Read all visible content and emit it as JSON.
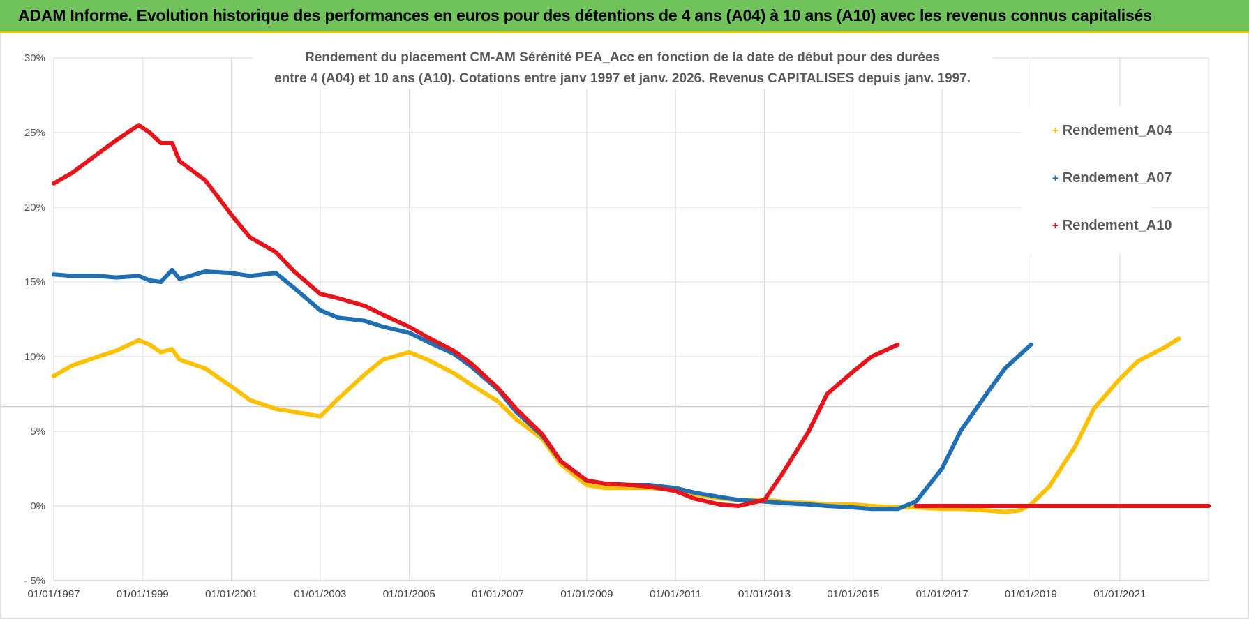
{
  "banner": {
    "title": "ADAM Informe. Evolution historique des performances en euros pour des détentions de 4 ans (A04) à 10 ans (A10) avec les revenus connus capitalisés"
  },
  "colors": {
    "banner_bg": "#70c25a",
    "banner_border": "#f2c200",
    "A04": "#ffc000",
    "A07": "#1f6fb4",
    "A10": "#e8141c",
    "grid": "#d9d9d9"
  },
  "chart_data": {
    "type": "scatter",
    "title_line1": "Rendement du placement CM-AM Sérénité PEA_Acc en fonction de la date de début pour des durées",
    "title_line2": "entre 4 (A04) et 10 ans (A10). Cotations entre janv 1997 et janv. 2026. Revenus CAPITALISES depuis janv. 1997.",
    "xlabel": "",
    "ylabel": "",
    "x_range": [
      "1997-01-01",
      "2023-01-01"
    ],
    "ylim": [
      -5,
      30
    ],
    "y_unit": "%",
    "y_ticks": [
      "30%",
      "25%",
      "20%",
      "15%",
      "10%",
      "5%",
      "0%",
      "- 5%"
    ],
    "x_ticks": [
      "01/01/1997",
      "01/01/1999",
      "01/01/2001",
      "01/01/2003",
      "01/01/2005",
      "01/01/2007",
      "01/01/2009",
      "01/01/2011",
      "01/01/2013",
      "01/01/2015",
      "01/01/2017",
      "01/01/2019",
      "01/01/2021"
    ],
    "grid": true,
    "legend_position": "right",
    "series": [
      {
        "name": "Rendement_A04",
        "color": "#ffc000",
        "points": [
          [
            "1997-01-01",
            8.7
          ],
          [
            "1997-06-01",
            9.4
          ],
          [
            "1998-01-01",
            10.0
          ],
          [
            "1998-06-01",
            10.4
          ],
          [
            "1998-12-01",
            11.1
          ],
          [
            "1999-03-01",
            10.8
          ],
          [
            "1999-06-01",
            10.3
          ],
          [
            "1999-09-01",
            10.5
          ],
          [
            "1999-11-01",
            9.8
          ],
          [
            "2000-06-01",
            9.2
          ],
          [
            "2001-01-01",
            8.0
          ],
          [
            "2001-06-01",
            7.1
          ],
          [
            "2002-01-01",
            6.5
          ],
          [
            "2002-06-01",
            6.3
          ],
          [
            "2003-01-01",
            6.0
          ],
          [
            "2003-06-01",
            7.2
          ],
          [
            "2004-01-01",
            8.8
          ],
          [
            "2004-06-01",
            9.8
          ],
          [
            "2005-01-01",
            10.3
          ],
          [
            "2005-06-01",
            9.8
          ],
          [
            "2006-01-01",
            8.9
          ],
          [
            "2006-06-01",
            8.1
          ],
          [
            "2007-01-01",
            7.0
          ],
          [
            "2007-06-01",
            5.8
          ],
          [
            "2008-01-01",
            4.5
          ],
          [
            "2008-06-01",
            2.8
          ],
          [
            "2009-01-01",
            1.4
          ],
          [
            "2009-06-01",
            1.2
          ],
          [
            "2010-01-01",
            1.2
          ],
          [
            "2010-06-01",
            1.2
          ],
          [
            "2011-01-01",
            1.1
          ],
          [
            "2011-06-01",
            0.8
          ],
          [
            "2012-01-01",
            0.5
          ],
          [
            "2012-06-01",
            0.4
          ],
          [
            "2013-01-01",
            0.4
          ],
          [
            "2013-06-01",
            0.3
          ],
          [
            "2014-01-01",
            0.2
          ],
          [
            "2014-06-01",
            0.1
          ],
          [
            "2015-01-01",
            0.1
          ],
          [
            "2015-06-01",
            0.0
          ],
          [
            "2016-01-01",
            -0.1
          ],
          [
            "2016-06-01",
            -0.1
          ],
          [
            "2017-01-01",
            -0.2
          ],
          [
            "2017-06-01",
            -0.2
          ],
          [
            "2018-01-01",
            -0.3
          ],
          [
            "2018-06-01",
            -0.4
          ],
          [
            "2018-10-01",
            -0.3
          ],
          [
            "2019-01-01",
            0.1
          ],
          [
            "2019-06-01",
            1.3
          ],
          [
            "2020-01-01",
            4.0
          ],
          [
            "2020-06-01",
            6.5
          ],
          [
            "2021-01-01",
            8.5
          ],
          [
            "2021-06-01",
            9.7
          ],
          [
            "2022-01-01",
            10.6
          ],
          [
            "2022-05-01",
            11.2
          ]
        ]
      },
      {
        "name": "Rendement_A07",
        "color": "#1f6fb4",
        "points": [
          [
            "1997-01-01",
            15.5
          ],
          [
            "1997-06-01",
            15.4
          ],
          [
            "1998-01-01",
            15.4
          ],
          [
            "1998-06-01",
            15.3
          ],
          [
            "1998-12-01",
            15.4
          ],
          [
            "1999-03-01",
            15.1
          ],
          [
            "1999-06-01",
            15.0
          ],
          [
            "1999-09-01",
            15.8
          ],
          [
            "1999-11-01",
            15.2
          ],
          [
            "2000-06-01",
            15.7
          ],
          [
            "2001-01-01",
            15.6
          ],
          [
            "2001-06-01",
            15.4
          ],
          [
            "2002-01-01",
            15.6
          ],
          [
            "2002-06-01",
            14.6
          ],
          [
            "2003-01-01",
            13.1
          ],
          [
            "2003-06-01",
            12.6
          ],
          [
            "2004-01-01",
            12.4
          ],
          [
            "2004-06-01",
            12.0
          ],
          [
            "2005-01-01",
            11.6
          ],
          [
            "2005-06-01",
            11.0
          ],
          [
            "2006-01-01",
            10.2
          ],
          [
            "2006-06-01",
            9.3
          ],
          [
            "2007-01-01",
            7.8
          ],
          [
            "2007-06-01",
            6.3
          ],
          [
            "2008-01-01",
            4.7
          ],
          [
            "2008-06-01",
            3.0
          ],
          [
            "2009-01-01",
            1.7
          ],
          [
            "2009-06-01",
            1.5
          ],
          [
            "2010-01-01",
            1.4
          ],
          [
            "2010-06-01",
            1.4
          ],
          [
            "2011-01-01",
            1.2
          ],
          [
            "2011-06-01",
            0.9
          ],
          [
            "2012-01-01",
            0.6
          ],
          [
            "2012-06-01",
            0.4
          ],
          [
            "2013-01-01",
            0.3
          ],
          [
            "2013-06-01",
            0.2
          ],
          [
            "2014-01-01",
            0.1
          ],
          [
            "2014-06-01",
            0.0
          ],
          [
            "2015-01-01",
            -0.1
          ],
          [
            "2015-06-01",
            -0.2
          ],
          [
            "2016-01-01",
            -0.2
          ],
          [
            "2016-06-01",
            0.3
          ],
          [
            "2017-01-01",
            2.5
          ],
          [
            "2017-06-01",
            5.0
          ],
          [
            "2018-01-01",
            7.5
          ],
          [
            "2018-06-01",
            9.2
          ],
          [
            "2019-01-01",
            10.8
          ]
        ]
      },
      {
        "name": "Rendement_A10",
        "color": "#e8141c",
        "points": [
          [
            "1997-01-01",
            21.6
          ],
          [
            "1997-06-01",
            22.3
          ],
          [
            "1998-01-01",
            23.6
          ],
          [
            "1998-06-01",
            24.5
          ],
          [
            "1998-12-01",
            25.5
          ],
          [
            "1999-03-01",
            25.0
          ],
          [
            "1999-06-01",
            24.3
          ],
          [
            "1999-09-01",
            24.3
          ],
          [
            "1999-11-01",
            23.1
          ],
          [
            "2000-06-01",
            21.8
          ],
          [
            "2001-01-01",
            19.5
          ],
          [
            "2001-06-01",
            18.0
          ],
          [
            "2002-01-01",
            17.0
          ],
          [
            "2002-06-01",
            15.7
          ],
          [
            "2003-01-01",
            14.2
          ],
          [
            "2003-06-01",
            13.9
          ],
          [
            "2004-01-01",
            13.4
          ],
          [
            "2004-06-01",
            12.8
          ],
          [
            "2005-01-01",
            12.0
          ],
          [
            "2005-06-01",
            11.3
          ],
          [
            "2006-01-01",
            10.4
          ],
          [
            "2006-06-01",
            9.5
          ],
          [
            "2007-01-01",
            7.9
          ],
          [
            "2007-06-01",
            6.5
          ],
          [
            "2008-01-01",
            4.8
          ],
          [
            "2008-06-01",
            3.0
          ],
          [
            "2009-01-01",
            1.7
          ],
          [
            "2009-06-01",
            1.5
          ],
          [
            "2010-01-01",
            1.4
          ],
          [
            "2010-06-01",
            1.3
          ],
          [
            "2011-01-01",
            1.0
          ],
          [
            "2011-06-01",
            0.5
          ],
          [
            "2012-01-01",
            0.1
          ],
          [
            "2012-06-01",
            0.0
          ],
          [
            "2013-01-01",
            0.4
          ],
          [
            "2013-06-01",
            2.2
          ],
          [
            "2014-01-01",
            5.0
          ],
          [
            "2014-06-01",
            7.5
          ],
          [
            "2015-01-01",
            9.0
          ],
          [
            "2015-06-01",
            10.0
          ],
          [
            "2016-01-01",
            10.8
          ],
          [
            "2016-06-01",
            0.0
          ],
          [
            "2017-01-01",
            0.0
          ],
          [
            "2018-01-01",
            0.0
          ],
          [
            "2019-01-01",
            0.0
          ],
          [
            "2020-01-01",
            0.0
          ],
          [
            "2021-01-01",
            0.0
          ],
          [
            "2022-01-01",
            0.0
          ],
          [
            "2023-01-01",
            0.0
          ]
        ]
      }
    ]
  }
}
